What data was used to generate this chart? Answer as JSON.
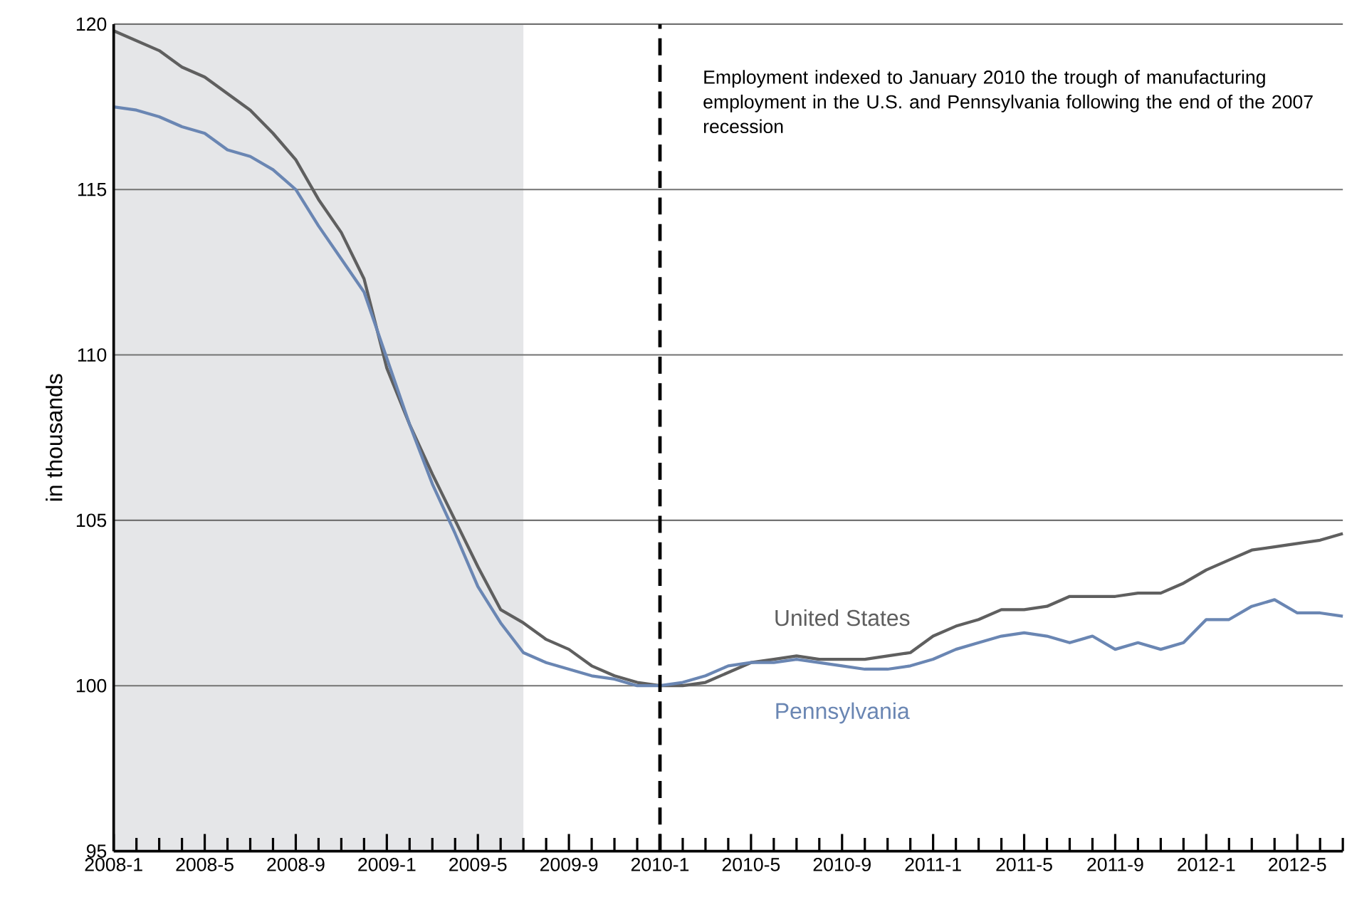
{
  "chart_data": {
    "type": "line",
    "ylabel": "in thousands",
    "x": [
      "2008-01",
      "2008-02",
      "2008-03",
      "2008-04",
      "2008-05",
      "2008-06",
      "2008-07",
      "2008-08",
      "2008-09",
      "2008-10",
      "2008-11",
      "2008-12",
      "2009-01",
      "2009-02",
      "2009-03",
      "2009-04",
      "2009-05",
      "2009-06",
      "2009-07",
      "2009-08",
      "2009-09",
      "2009-10",
      "2009-11",
      "2009-12",
      "2010-01",
      "2010-02",
      "2010-03",
      "2010-04",
      "2010-05",
      "2010-06",
      "2010-07",
      "2010-08",
      "2010-09",
      "2010-10",
      "2010-11",
      "2010-12",
      "2011-01",
      "2011-02",
      "2011-03",
      "2011-04",
      "2011-05",
      "2011-06",
      "2011-07",
      "2011-08",
      "2011-09",
      "2011-10",
      "2011-11",
      "2011-12",
      "2012-01",
      "2012-02",
      "2012-03",
      "2012-04",
      "2012-05",
      "2012-06",
      "2012-07"
    ],
    "series": [
      {
        "name": "United States",
        "color": "#5f5f5f",
        "values": [
          119.8,
          119.5,
          119.2,
          118.7,
          118.4,
          117.9,
          117.4,
          116.7,
          115.9,
          114.7,
          113.7,
          112.3,
          109.6,
          107.9,
          106.4,
          105.0,
          103.6,
          102.3,
          101.9,
          101.4,
          101.1,
          100.6,
          100.3,
          100.1,
          100.0,
          100.0,
          100.1,
          100.4,
          100.7,
          100.8,
          100.9,
          100.8,
          100.8,
          100.8,
          100.9,
          101.0,
          101.5,
          101.8,
          102.0,
          102.3,
          102.3,
          102.4,
          102.7,
          102.7,
          102.7,
          102.8,
          102.8,
          103.1,
          103.5,
          103.8,
          104.1,
          104.2,
          104.3,
          104.4,
          104.6
        ]
      },
      {
        "name": "Pennsylvania",
        "color": "#6a86b3",
        "values": [
          117.5,
          117.4,
          117.2,
          116.9,
          116.7,
          116.2,
          116.0,
          115.6,
          115.0,
          113.9,
          112.9,
          111.9,
          109.9,
          107.9,
          106.1,
          104.6,
          103.0,
          101.9,
          101.0,
          100.7,
          100.5,
          100.3,
          100.2,
          100.0,
          100.0,
          100.1,
          100.3,
          100.6,
          100.7,
          100.7,
          100.8,
          100.7,
          100.6,
          100.5,
          100.5,
          100.6,
          100.8,
          101.1,
          101.3,
          101.5,
          101.6,
          101.5,
          101.3,
          101.5,
          101.1,
          101.3,
          101.1,
          101.3,
          102.0,
          102.0,
          102.4,
          102.6,
          102.2,
          102.2,
          102.1
        ]
      }
    ],
    "xlim": [
      "2008-01",
      "2012-07"
    ],
    "xticks": [
      {
        "value": "2008-01",
        "label": "2008-1"
      },
      {
        "value": "2008-02",
        "label": null
      },
      {
        "value": "2008-03",
        "label": null
      },
      {
        "value": "2008-04",
        "label": null
      },
      {
        "value": "2008-05",
        "label": "2008-5"
      },
      {
        "value": "2008-06",
        "label": null
      },
      {
        "value": "2008-07",
        "label": null
      },
      {
        "value": "2008-08",
        "label": null
      },
      {
        "value": "2008-09",
        "label": "2008-9"
      },
      {
        "value": "2008-10",
        "label": null
      },
      {
        "value": "2008-11",
        "label": null
      },
      {
        "value": "2008-12",
        "label": null
      },
      {
        "value": "2009-01",
        "label": "2009-1"
      },
      {
        "value": "2009-02",
        "label": null
      },
      {
        "value": "2009-03",
        "label": null
      },
      {
        "value": "2009-04",
        "label": null
      },
      {
        "value": "2009-05",
        "label": "2009-5"
      },
      {
        "value": "2009-06",
        "label": null
      },
      {
        "value": "2009-07",
        "label": null
      },
      {
        "value": "2009-08",
        "label": null
      },
      {
        "value": "2009-09",
        "label": "2009-9"
      },
      {
        "value": "2009-10",
        "label": null
      },
      {
        "value": "2009-11",
        "label": null
      },
      {
        "value": "2009-12",
        "label": null
      },
      {
        "value": "2010-01",
        "label": "2010-1"
      },
      {
        "value": "2010-02",
        "label": null
      },
      {
        "value": "2010-03",
        "label": null
      },
      {
        "value": "2010-04",
        "label": null
      },
      {
        "value": "2010-05",
        "label": "2010-5"
      },
      {
        "value": "2010-06",
        "label": null
      },
      {
        "value": "2010-07",
        "label": null
      },
      {
        "value": "2010-08",
        "label": null
      },
      {
        "value": "2010-09",
        "label": "2010-9"
      },
      {
        "value": "2010-10",
        "label": null
      },
      {
        "value": "2010-11",
        "label": null
      },
      {
        "value": "2010-12",
        "label": null
      },
      {
        "value": "2011-01",
        "label": "2011-1"
      },
      {
        "value": "2011-02",
        "label": null
      },
      {
        "value": "2011-03",
        "label": null
      },
      {
        "value": "2011-04",
        "label": null
      },
      {
        "value": "2011-05",
        "label": "2011-5"
      },
      {
        "value": "2011-06",
        "label": null
      },
      {
        "value": "2011-07",
        "label": null
      },
      {
        "value": "2011-08",
        "label": null
      },
      {
        "value": "2011-09",
        "label": "2011-9"
      },
      {
        "value": "2011-10",
        "label": null
      },
      {
        "value": "2011-11",
        "label": null
      },
      {
        "value": "2011-12",
        "label": null
      },
      {
        "value": "2012-01",
        "label": "2012-1"
      },
      {
        "value": "2012-02",
        "label": null
      },
      {
        "value": "2012-03",
        "label": null
      },
      {
        "value": "2012-04",
        "label": null
      },
      {
        "value": "2012-05",
        "label": "2012-5"
      },
      {
        "value": "2012-06",
        "label": null
      },
      {
        "value": "2012-07",
        "label": null
      }
    ],
    "ylim": [
      95,
      120
    ],
    "yticks": [
      95,
      100,
      105,
      110,
      115,
      120
    ],
    "grid": "y",
    "legend": false,
    "marker": "none",
    "line_style": "solid",
    "ref_lines": [
      {
        "axis": "x",
        "value": "2010-01",
        "color": "#000000",
        "line_style": "dashed"
      }
    ],
    "bands": [
      {
        "axis": "x",
        "from": "2008-01",
        "to": "2009-07",
        "color": "#e5e6e8"
      }
    ],
    "annotations": [
      "Employment indexed to January 2010 the trough of manufacturing employment in the U.S. and Pennsylvania following the end of the 2007 recession"
    ]
  }
}
